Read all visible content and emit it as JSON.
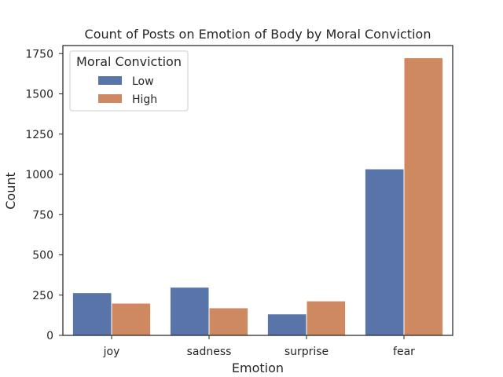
{
  "chart_data": {
    "type": "bar",
    "title": "Count of Posts on Emotion of Body by Moral Conviction",
    "xlabel": "Emotion",
    "ylabel": "Count",
    "categories": [
      "joy",
      "sadness",
      "surprise",
      "fear"
    ],
    "series": [
      {
        "name": "Low",
        "values": [
          265,
          299,
          133,
          1034
        ],
        "color": "#5874a8"
      },
      {
        "name": "High",
        "values": [
          200,
          171,
          214,
          1724
        ],
        "color": "#cf8961"
      }
    ],
    "ylim": [
      0,
      1800
    ],
    "yticks": [
      0,
      250,
      500,
      750,
      1000,
      1250,
      1500,
      1750
    ],
    "legend": {
      "title": "Moral Conviction",
      "position": "top-left"
    },
    "grid": false
  }
}
